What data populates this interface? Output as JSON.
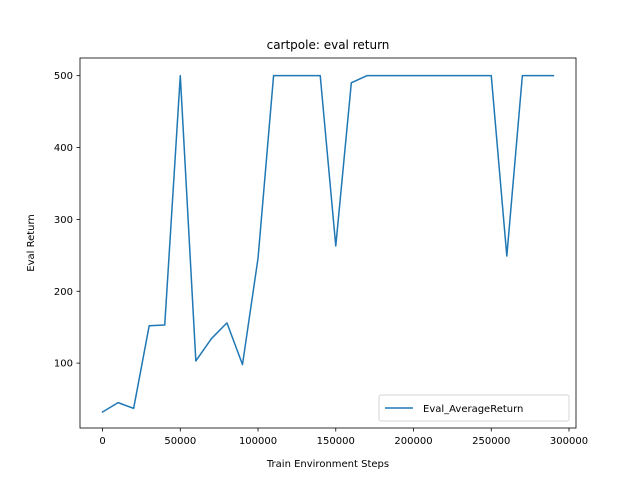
{
  "chart_data": {
    "type": "line",
    "title": "cartpole: eval return",
    "xlabel": "Train Environment Steps",
    "ylabel": "Eval Return",
    "xlim": [
      -14500,
      304500
    ],
    "ylim": [
      9.7,
      524.6
    ],
    "xticks": [
      0,
      50000,
      100000,
      150000,
      200000,
      250000,
      300000
    ],
    "xtick_labels": [
      "0",
      "50000",
      "100000",
      "150000",
      "200000",
      "250000",
      "300000"
    ],
    "yticks": [
      100,
      200,
      300,
      400,
      500
    ],
    "ytick_labels": [
      "100",
      "200",
      "300",
      "400",
      "500"
    ],
    "grid": false,
    "legend_position": "lower right",
    "colors": {
      "series": "#1f77b4"
    },
    "series": [
      {
        "name": "Eval_AverageReturn",
        "x": [
          0,
          10000,
          20000,
          30000,
          40000,
          50000,
          60000,
          70000,
          80000,
          90000,
          100000,
          110000,
          120000,
          130000,
          140000,
          150000,
          160000,
          170000,
          180000,
          190000,
          200000,
          210000,
          220000,
          230000,
          240000,
          250000,
          260000,
          270000,
          280000,
          290000
        ],
        "y": [
          32,
          45,
          37,
          152,
          153,
          500,
          103,
          134,
          156,
          98,
          246,
          500,
          500,
          500,
          500,
          263,
          490,
          500,
          500,
          500,
          500,
          500,
          500,
          500,
          500,
          500,
          249,
          500,
          500,
          500
        ]
      }
    ]
  }
}
